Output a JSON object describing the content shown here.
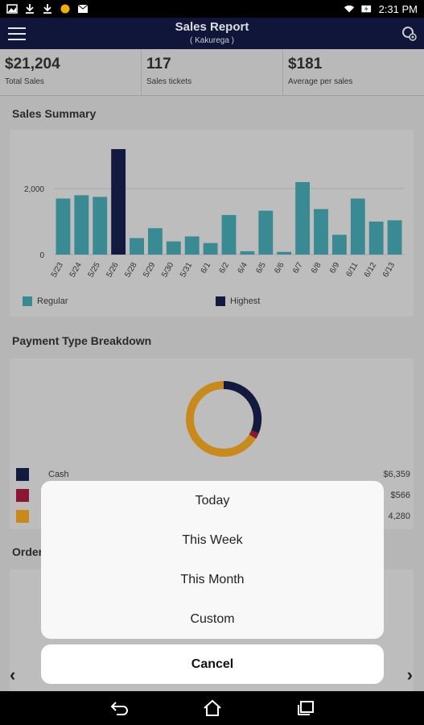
{
  "status": {
    "time": "2:31 PM"
  },
  "header": {
    "title": "Sales Report",
    "subtitle": "( Kakurega )"
  },
  "stats": [
    {
      "value": "$21,204",
      "label": "Total Sales"
    },
    {
      "value": "117",
      "label": "Sales tickets"
    },
    {
      "value": "$181",
      "label": "Average per sales"
    }
  ],
  "sales_summary": {
    "title": "Sales Summary",
    "legend_regular": "Regular",
    "legend_highest": "Highest"
  },
  "chart_data": {
    "type": "bar",
    "categories": [
      "5/23",
      "5/24",
      "5/25",
      "5/26",
      "5/28",
      "5/29",
      "5/30",
      "5/31",
      "6/1",
      "6/2",
      "6/4",
      "6/5",
      "6/6",
      "6/7",
      "6/8",
      "6/9",
      "6/11",
      "6/12",
      "6/13"
    ],
    "values": [
      1700,
      1800,
      1750,
      3200,
      500,
      800,
      400,
      550,
      350,
      1200,
      100,
      1330,
      80,
      2200,
      1380,
      600,
      1700,
      1000,
      1040
    ],
    "highest_index": 3,
    "yticks": [
      "0",
      "2,000"
    ],
    "ylim": [
      0,
      3300
    ],
    "colors": {
      "regular": "#3a8a93",
      "highest": "#121a40"
    }
  },
  "payment": {
    "title": "Payment Type Breakdown",
    "rows": [
      {
        "name": "Cash",
        "amount": "$6,359",
        "color": "#121a40"
      },
      {
        "name": "",
        "amount": "$566",
        "color": "#8a1633"
      },
      {
        "name": "",
        "amount": "4,280",
        "color": "#c98a1c"
      }
    ]
  },
  "orders": {
    "title_fragment": "Order"
  },
  "sheet": {
    "options": [
      "Today",
      "This Week",
      "This Month",
      "Custom"
    ],
    "cancel": "Cancel"
  }
}
